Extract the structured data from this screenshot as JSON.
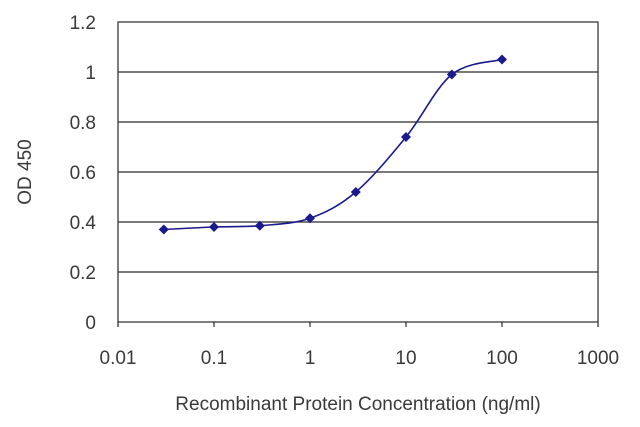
{
  "chart_data": {
    "type": "scatter",
    "title": "",
    "xlabel": "Recombinant Protein Concentration (ng/ml)",
    "ylabel": "OD 450",
    "x_scale": "log",
    "xlim": [
      0.01,
      1000
    ],
    "ylim": [
      0,
      1.2
    ],
    "x_ticks": [
      0.01,
      0.1,
      1,
      10,
      100,
      1000
    ],
    "x_tick_labels": [
      "0.01",
      "0.1",
      "1",
      "10",
      "100",
      "1000"
    ],
    "y_ticks": [
      0,
      0.2,
      0.4,
      0.6,
      0.8,
      1,
      1.2
    ],
    "y_tick_labels": [
      "0",
      "0.2",
      "0.4",
      "0.6",
      "0.8",
      "1",
      "1.2"
    ],
    "grid": "horizontal",
    "legend": "none",
    "series": [
      {
        "marker": "diamond",
        "x": [
          0.03,
          0.1,
          0.3,
          1,
          3,
          10,
          30,
          100
        ],
        "y": [
          0.37,
          0.38,
          0.385,
          0.415,
          0.52,
          0.74,
          0.99,
          1.05
        ]
      }
    ],
    "colors": {
      "series": "#1a1a8c",
      "grid": "#2a2a2a",
      "text": "#3a3a3a"
    }
  }
}
